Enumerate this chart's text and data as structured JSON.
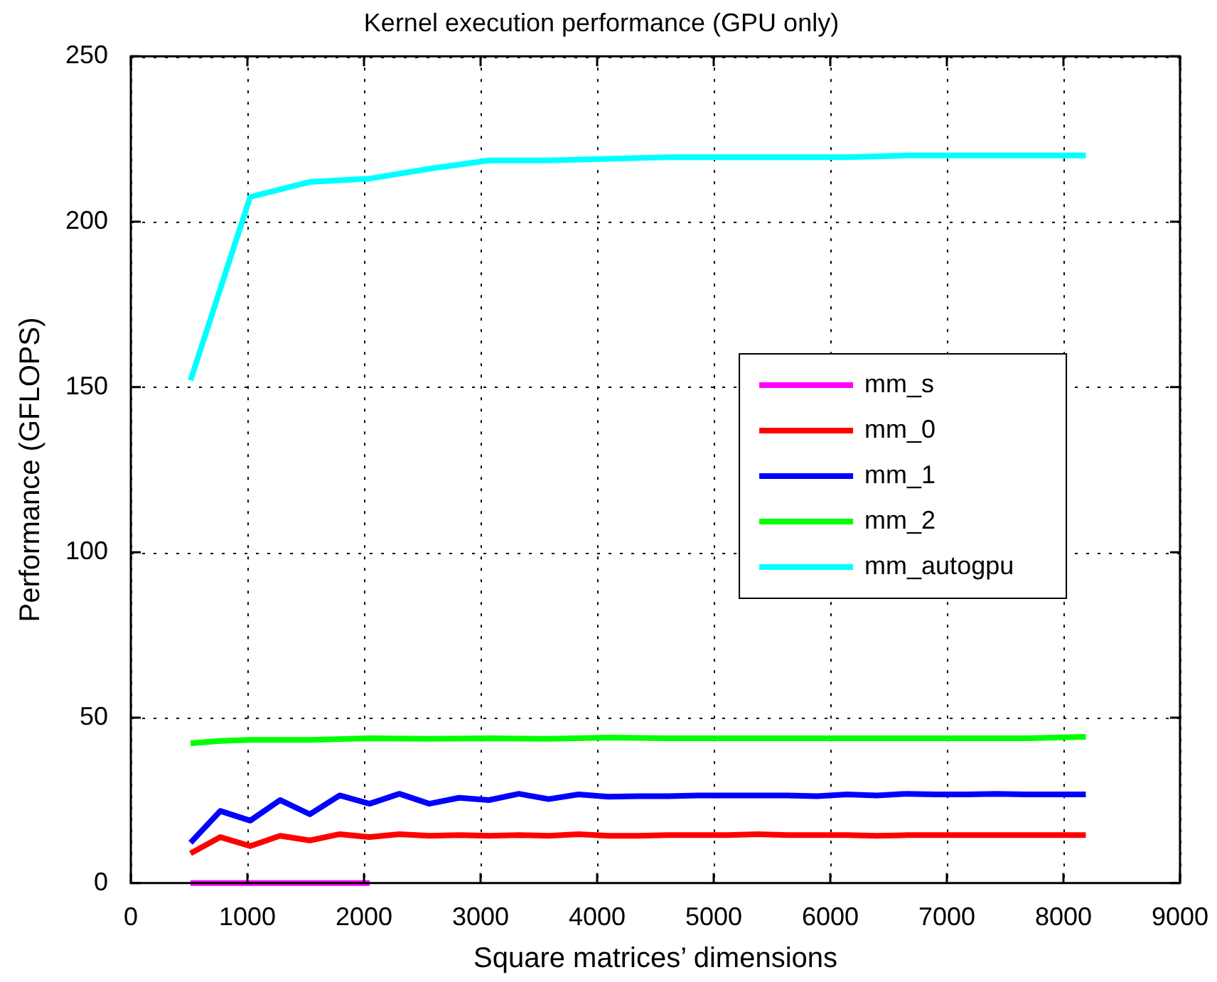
{
  "chart_data": {
    "type": "line",
    "title": "Kernel execution performance (GPU only)",
    "xlabel": "Square matrices’ dimensions",
    "ylabel": "Performance (GFLOPS)",
    "xlim": [
      0,
      9000
    ],
    "xticks": [
      0,
      1000,
      2000,
      3000,
      4000,
      5000,
      6000,
      7000,
      8000,
      9000
    ],
    "ylim": [
      0,
      250
    ],
    "yticks": [
      0,
      50,
      100,
      150,
      200,
      250
    ],
    "grid": true,
    "legend": "right",
    "marker": "none",
    "line_style": "solid",
    "series": [
      {
        "name": "mm_s",
        "color": "#ff00ff",
        "x": [
          512,
          768,
          1024,
          1280,
          1536,
          1792,
          2048
        ],
        "values": [
          0,
          0,
          0,
          0,
          0,
          0,
          0
        ]
      },
      {
        "name": "mm_0",
        "color": "#ff0000",
        "x": [
          512,
          768,
          1024,
          1280,
          1536,
          1792,
          2048,
          2304,
          2560,
          2816,
          3072,
          3328,
          3584,
          3840,
          4096,
          4352,
          4608,
          4864,
          5120,
          5376,
          5632,
          5888,
          6144,
          6400,
          6656,
          6912,
          7168,
          7424,
          7680,
          7936,
          8192
        ],
        "values": [
          9,
          13.9,
          11.2,
          14.3,
          12.9,
          14.8,
          13.9,
          14.8,
          14.3,
          14.5,
          14.3,
          14.5,
          14.3,
          14.8,
          14.3,
          14.3,
          14.5,
          14.5,
          14.5,
          14.8,
          14.5,
          14.5,
          14.5,
          14.3,
          14.5,
          14.5,
          14.5,
          14.5,
          14.5,
          14.5,
          14.5
        ]
      },
      {
        "name": "mm_1",
        "color": "#0000ff",
        "x": [
          512,
          768,
          1024,
          1280,
          1536,
          1792,
          2048,
          2304,
          2560,
          2816,
          3072,
          3328,
          3584,
          3840,
          4096,
          4352,
          4608,
          4864,
          5120,
          5376,
          5632,
          5888,
          6144,
          6400,
          6656,
          6912,
          7168,
          7424,
          7680,
          7936,
          8192
        ],
        "values": [
          12.2,
          21.8,
          18.9,
          25.1,
          20.8,
          26.5,
          24,
          27,
          24,
          25.8,
          25.1,
          27,
          25.4,
          26.8,
          26.1,
          26.3,
          26.3,
          26.5,
          26.5,
          26.5,
          26.5,
          26.3,
          26.8,
          26.5,
          27,
          26.8,
          26.8,
          27,
          26.8,
          26.8,
          26.8
        ]
      },
      {
        "name": "mm_2",
        "color": "#00ff00",
        "x": [
          512,
          768,
          1024,
          1536,
          2048,
          2560,
          3072,
          3584,
          4096,
          4608,
          5120,
          5632,
          6144,
          6656,
          7168,
          7680,
          8192
        ],
        "values": [
          42.3,
          43,
          43.3,
          43.3,
          43.8,
          43.6,
          43.8,
          43.6,
          44,
          43.8,
          43.8,
          43.8,
          43.8,
          43.8,
          43.8,
          43.8,
          44.2
        ]
      },
      {
        "name": "mm_autogpu",
        "color": "#00ffff",
        "x": [
          512,
          1024,
          1536,
          2048,
          2560,
          3072,
          3584,
          4096,
          4608,
          5120,
          5632,
          6144,
          6656,
          7168,
          7680,
          8192
        ],
        "values": [
          152,
          207.5,
          212,
          213,
          216,
          218.5,
          218.5,
          219,
          219.5,
          219.5,
          219.5,
          219.5,
          220,
          220,
          220,
          220
        ]
      }
    ]
  }
}
